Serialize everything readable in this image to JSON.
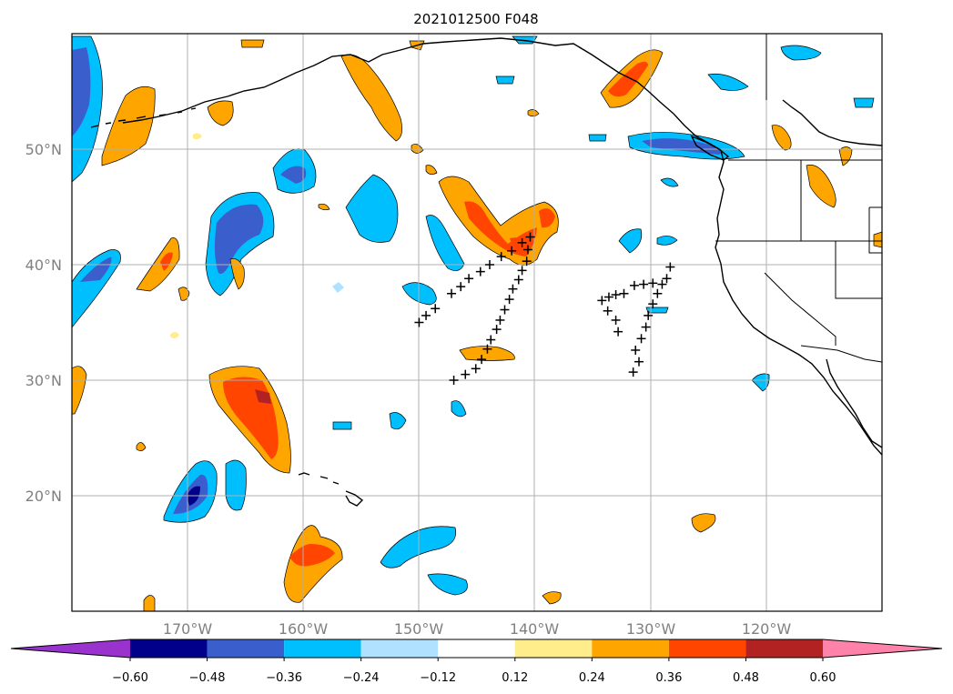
{
  "title": "2021012500 F048",
  "map": {
    "projection": "PlateCarree",
    "lon_range": [
      -180,
      -110
    ],
    "lat_range": [
      10,
      60
    ],
    "gridlines": true,
    "lat_labels": [
      "50°N",
      "40°N",
      "30°N",
      "20°N"
    ],
    "lon_labels": [
      "170°W",
      "160°W",
      "150°W",
      "140°W",
      "130°W",
      "120°W"
    ]
  },
  "colorbar": {
    "orientation": "horizontal",
    "extend": "both",
    "tick_labels": [
      "−0.60",
      "−0.48",
      "−0.36",
      "−0.24",
      "−0.12",
      "0.12",
      "0.24",
      "0.36",
      "0.48",
      "0.60"
    ],
    "levels": [
      -0.6,
      -0.48,
      -0.36,
      -0.24,
      -0.12,
      0.12,
      0.24,
      0.36,
      0.48,
      0.6
    ],
    "colors": [
      "#9a32cd",
      "#00008b",
      "#3a5fcd",
      "#00bfff",
      "#b0e2ff",
      "#ffffff",
      "#ffec8b",
      "#ffa500",
      "#ff4500",
      "#b22222",
      "#ff82ab"
    ]
  },
  "markers": {
    "symbol": "+",
    "tracks": [
      [
        [
          -150.0,
          35.0
        ],
        [
          -149.4,
          35.6
        ],
        [
          -148.6,
          36.2
        ],
        [
          -147.2,
          37.5
        ],
        [
          -146.4,
          38.1
        ],
        [
          -145.7,
          38.8
        ],
        [
          -144.7,
          39.4
        ],
        [
          -143.9,
          40.0
        ],
        [
          -142.9,
          40.7
        ],
        [
          -142.0,
          41.2
        ],
        [
          -141.1,
          41.9
        ],
        [
          -140.4,
          42.4
        ]
      ],
      [
        [
          -147.0,
          30.0
        ],
        [
          -146.0,
          30.5
        ],
        [
          -145.1,
          31.0
        ],
        [
          -144.6,
          31.8
        ],
        [
          -144.1,
          32.7
        ],
        [
          -143.8,
          33.5
        ],
        [
          -143.3,
          34.4
        ],
        [
          -143.0,
          35.2
        ],
        [
          -142.6,
          36.1
        ],
        [
          -142.2,
          37.0
        ],
        [
          -141.9,
          37.9
        ],
        [
          -141.4,
          38.7
        ],
        [
          -141.1,
          39.5
        ],
        [
          -140.7,
          40.3
        ],
        [
          -140.6,
          41.3
        ]
      ],
      [
        [
          -134.2,
          36.9
        ],
        [
          -133.6,
          37.2
        ],
        [
          -133.0,
          37.4
        ],
        [
          -132.3,
          37.5
        ],
        [
          -133.7,
          36.0
        ],
        [
          -133.0,
          35.2
        ],
        [
          -132.8,
          34.2
        ]
      ],
      [
        [
          -131.5,
          30.7
        ],
        [
          -131.0,
          31.6
        ],
        [
          -131.3,
          32.6
        ],
        [
          -130.8,
          33.6
        ],
        [
          -130.4,
          34.6
        ],
        [
          -130.2,
          35.6
        ],
        [
          -129.8,
          36.6
        ],
        [
          -129.4,
          37.5
        ],
        [
          -129.0,
          38.3
        ],
        [
          -129.8,
          38.4
        ],
        [
          -130.6,
          38.3
        ],
        [
          -131.4,
          38.2
        ],
        [
          -128.6,
          38.8
        ],
        [
          -128.3,
          39.8
        ]
      ]
    ]
  }
}
